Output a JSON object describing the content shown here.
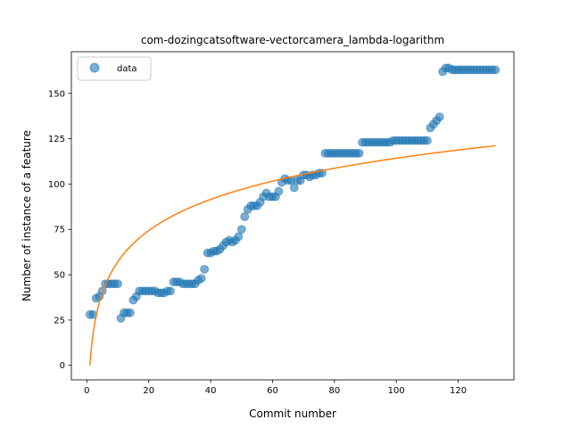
{
  "chart_data": {
    "type": "scatter",
    "title": "com-dozingcatsoftware-vectorcamera_lambda-logarithm",
    "xlabel": "Commit number",
    "ylabel": "Number of instance of a feature",
    "xlim": [
      -5,
      138
    ],
    "ylim": [
      -8,
      173
    ],
    "xticks": [
      0,
      20,
      40,
      60,
      80,
      100,
      120
    ],
    "yticks": [
      0,
      25,
      50,
      75,
      100,
      125,
      150
    ],
    "grid": false,
    "legend_position": "top-left",
    "colors": {
      "data": "#1f77b4",
      "fit": "#ff7f0e"
    },
    "series": [
      {
        "name": "data",
        "kind": "scatter",
        "x": [
          1,
          2,
          3,
          4,
          5,
          6,
          7,
          8,
          9,
          10,
          11,
          12,
          13,
          14,
          15,
          16,
          17,
          18,
          19,
          20,
          21,
          22,
          23,
          24,
          25,
          26,
          27,
          28,
          29,
          30,
          31,
          32,
          33,
          34,
          35,
          36,
          37,
          38,
          39,
          40,
          41,
          42,
          43,
          44,
          45,
          46,
          47,
          48,
          49,
          50,
          51,
          52,
          53,
          54,
          55,
          56,
          57,
          58,
          59,
          60,
          61,
          62,
          63,
          64,
          65,
          66,
          67,
          68,
          69,
          70,
          71,
          72,
          73,
          74,
          75,
          76,
          77,
          78,
          79,
          80,
          81,
          82,
          83,
          84,
          85,
          86,
          87,
          88,
          89,
          90,
          91,
          92,
          93,
          94,
          95,
          96,
          97,
          98,
          99,
          100,
          101,
          102,
          103,
          104,
          105,
          106,
          107,
          108,
          109,
          110,
          111,
          112,
          113,
          114,
          115,
          116,
          117,
          118,
          119,
          120,
          121,
          122,
          123,
          124,
          125,
          126,
          127,
          128,
          129,
          130,
          131,
          132
        ],
        "y": [
          28,
          28,
          37,
          38,
          41,
          45,
          45,
          45,
          45,
          45,
          26,
          29,
          29,
          29,
          36,
          38,
          41,
          41,
          41,
          41,
          41,
          41,
          40,
          40,
          40,
          41,
          41,
          46,
          46,
          46,
          45,
          45,
          45,
          45,
          45,
          47,
          48,
          53,
          62,
          62,
          63,
          63,
          64,
          66,
          68,
          69,
          68,
          69,
          71,
          75,
          82,
          86,
          88,
          88,
          88,
          90,
          93,
          95,
          93,
          93,
          93,
          96,
          101,
          103,
          102,
          102,
          98,
          102,
          102,
          105,
          105,
          104,
          105,
          105,
          106,
          106,
          117,
          117,
          117,
          117,
          117,
          117,
          117,
          117,
          117,
          117,
          117,
          117,
          123,
          123,
          123,
          123,
          123,
          123,
          123,
          123,
          123,
          123,
          124,
          124,
          124,
          124,
          124,
          124,
          124,
          124,
          124,
          124,
          124,
          124,
          131,
          133,
          135,
          137,
          162,
          164,
          164,
          163,
          163,
          163,
          163,
          163,
          163,
          163,
          163,
          163,
          163,
          163,
          163,
          163,
          163,
          163
        ]
      },
      {
        "name": "",
        "kind": "line",
        "formula": "y = 24.81 * ln(x)",
        "coefficient": 24.81,
        "x_range": [
          1,
          132
        ]
      }
    ]
  }
}
